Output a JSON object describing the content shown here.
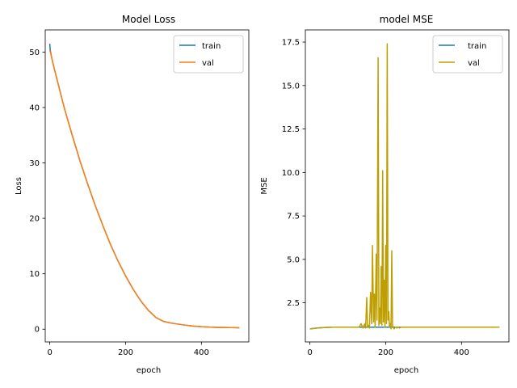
{
  "chart_data": [
    {
      "type": "line",
      "title": "Model Loss",
      "xlabel": "epoch",
      "ylabel": "Loss",
      "xlim": [
        -12,
        525
      ],
      "ylim": [
        -2.3,
        54
      ],
      "xticks": [
        0,
        200,
        400
      ],
      "yticks": [
        0,
        10,
        20,
        30,
        40,
        50
      ],
      "ytick_labels": [
        "0",
        "10",
        "20",
        "30",
        "40",
        "50"
      ],
      "legend": {
        "position": "top-right"
      },
      "series": [
        {
          "name": "train",
          "color": "#1f77b4",
          "x": [
            0,
            1,
            2,
            5,
            10,
            20,
            40,
            60,
            80,
            100,
            120,
            140,
            160,
            180,
            200,
            220,
            240,
            260,
            280,
            300,
            320,
            340,
            360,
            380,
            400,
            420,
            440,
            460,
            480,
            500
          ],
          "y": [
            51.5,
            50.4,
            50.1,
            49.0,
            47.5,
            44.8,
            39.5,
            34.8,
            30.3,
            26.2,
            22.3,
            18.7,
            15.3,
            12.3,
            9.6,
            7.2,
            5.1,
            3.4,
            2.1,
            1.4,
            1.1,
            0.9,
            0.7,
            0.55,
            0.45,
            0.38,
            0.33,
            0.3,
            0.28,
            0.26
          ]
        },
        {
          "name": "val",
          "color": "#ff7f0e",
          "x": [
            0,
            2,
            5,
            10,
            20,
            40,
            60,
            80,
            100,
            120,
            140,
            160,
            180,
            200,
            220,
            240,
            260,
            280,
            300,
            320,
            340,
            360,
            380,
            400,
            420,
            440,
            460,
            480,
            500
          ],
          "y": [
            50.3,
            49.9,
            49.0,
            47.5,
            44.8,
            39.5,
            34.8,
            30.3,
            26.2,
            22.3,
            18.7,
            15.3,
            12.3,
            9.6,
            7.2,
            5.1,
            3.4,
            2.1,
            1.4,
            1.1,
            0.9,
            0.7,
            0.55,
            0.45,
            0.38,
            0.33,
            0.3,
            0.28,
            0.26
          ]
        }
      ]
    },
    {
      "type": "line",
      "title": "model MSE",
      "xlabel": "epoch",
      "ylabel": "MSE",
      "xlim": [
        -12,
        525
      ],
      "ylim": [
        0.25,
        18.2
      ],
      "xticks": [
        0,
        200,
        400
      ],
      "yticks": [
        2.5,
        5.0,
        7.5,
        10.0,
        12.5,
        15.0,
        17.5
      ],
      "ytick_labels": [
        "2.5",
        "5.0",
        "7.5",
        "10.0",
        "12.5",
        "15.0",
        "17.5"
      ],
      "legend": {
        "position": "top-right"
      },
      "series": [
        {
          "name": "train",
          "color": "#1f77b4",
          "x": [
            0,
            20,
            40,
            60,
            80,
            100,
            120,
            140,
            160,
            180,
            200,
            220,
            240,
            260,
            280,
            300,
            350,
            400,
            450,
            500
          ],
          "y": [
            1.0,
            1.05,
            1.08,
            1.1,
            1.1,
            1.1,
            1.1,
            1.1,
            1.1,
            1.1,
            1.1,
            1.1,
            1.1,
            1.1,
            1.1,
            1.1,
            1.1,
            1.1,
            1.1,
            1.1
          ]
        },
        {
          "name": "val",
          "color": "#bf9f00",
          "x": [
            0,
            20,
            40,
            60,
            80,
            100,
            120,
            130,
            135,
            140,
            145,
            147,
            150,
            152,
            155,
            157,
            160,
            163,
            165,
            168,
            170,
            172,
            175,
            177,
            180,
            182,
            184,
            186,
            188,
            190,
            192,
            194,
            196,
            198,
            200,
            202,
            204,
            206,
            208,
            210,
            212,
            214,
            216,
            218,
            220,
            222,
            224,
            226,
            228,
            230,
            232,
            234,
            236,
            240,
            250,
            260,
            270,
            280,
            300,
            350,
            400,
            450,
            500
          ],
          "y": [
            1.0,
            1.05,
            1.08,
            1.1,
            1.1,
            1.1,
            1.1,
            1.1,
            1.3,
            1.05,
            1.3,
            1.05,
            2.8,
            1.1,
            1.2,
            1.05,
            3.1,
            1.3,
            5.8,
            1.4,
            3.0,
            1.1,
            5.3,
            1.5,
            16.6,
            1.2,
            2.2,
            1.3,
            4.6,
            1.2,
            10.1,
            1.4,
            3.8,
            1.1,
            5.8,
            1.3,
            17.4,
            1.5,
            2.0,
            1.1,
            1.3,
            1.0,
            5.5,
            1.2,
            1.1,
            1.0,
            1.05,
            1.1,
            1.1,
            1.05,
            1.1,
            1.1,
            1.05,
            1.1,
            1.1,
            1.1,
            1.1,
            1.1,
            1.1,
            1.1,
            1.1,
            1.1,
            1.1
          ]
        }
      ]
    }
  ]
}
